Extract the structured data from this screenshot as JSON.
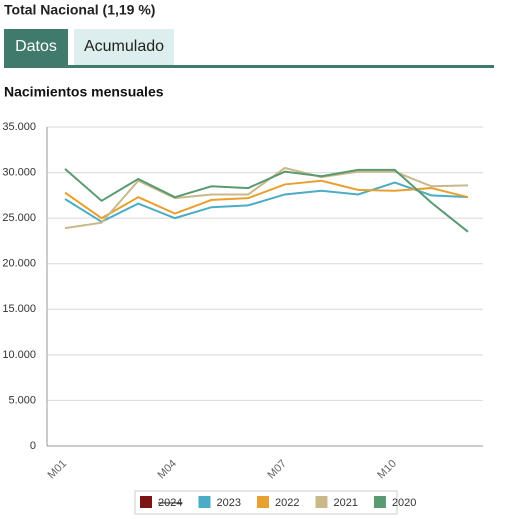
{
  "header": {
    "title": "Total Nacional (1,19 %)"
  },
  "tabs": [
    "Datos",
    "Acumulado"
  ],
  "chart_data": {
    "type": "line",
    "title": "Nacimientos mensuales",
    "categories": [
      "M01",
      null,
      null,
      "M04",
      null,
      null,
      "M07",
      null,
      null,
      "M10",
      null,
      null
    ],
    "ylim": [
      0,
      35000
    ],
    "yticks": [
      {
        "value": 0,
        "label": "0"
      },
      {
        "value": 5000,
        "label": "5.000"
      },
      {
        "value": 10000,
        "label": "10.000"
      },
      {
        "value": 15000,
        "label": "15.000"
      },
      {
        "value": 20000,
        "label": "20.000"
      },
      {
        "value": 25000,
        "label": "25.000"
      },
      {
        "value": 30000,
        "label": "30.000"
      },
      {
        "value": 35000,
        "label": "35.000"
      }
    ],
    "grid": true,
    "legend": "bottom",
    "series": [
      {
        "name": "2024",
        "color": "#7b1414",
        "hidden": true,
        "values": [
          null,
          null,
          null,
          null,
          null,
          null,
          null,
          null,
          null,
          null,
          null,
          null
        ]
      },
      {
        "name": "2023",
        "color": "#4bacc6",
        "values": [
          27100,
          24600,
          26600,
          25000,
          26200,
          26400,
          27600,
          28000,
          27600,
          28900,
          27500,
          27300
        ]
      },
      {
        "name": "2022",
        "color": "#e8a030",
        "values": [
          27800,
          25000,
          27300,
          25500,
          27000,
          27200,
          28700,
          29100,
          28100,
          28000,
          28300,
          27300
        ]
      },
      {
        "name": "2021",
        "color": "#c8b88a",
        "values": [
          23900,
          24500,
          29100,
          27200,
          27600,
          27600,
          30500,
          29500,
          30100,
          30100,
          28500,
          28600
        ]
      },
      {
        "name": "2020",
        "color": "#5a9a72",
        "values": [
          30400,
          26900,
          29300,
          27300,
          28500,
          28300,
          30100,
          29600,
          30300,
          30300,
          26700,
          23500
        ]
      }
    ]
  }
}
